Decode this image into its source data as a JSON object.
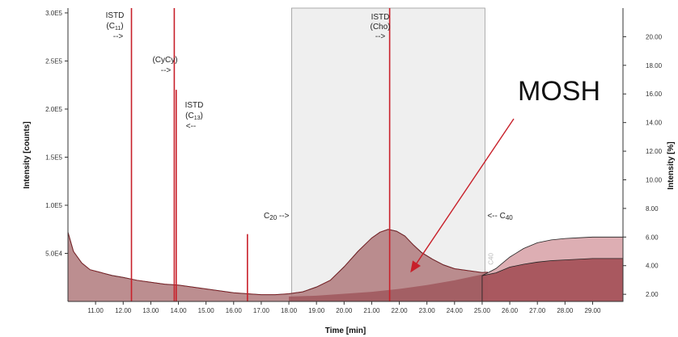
{
  "chart_data": {
    "type": "line",
    "xlabel": "Time [min]",
    "ylabel_left": "Intensity [counts]",
    "ylabel_right": "Intensity [%]",
    "xlim": [
      10.0,
      30.1
    ],
    "ylim_left": [
      0,
      305000
    ],
    "ylim_right": [
      1.5,
      22.0
    ],
    "x_ticks": [
      "11.00",
      "12.00",
      "13.00",
      "14.00",
      "15.00",
      "16.00",
      "17.00",
      "18.00",
      "19.00",
      "20.00",
      "21.00",
      "22.00",
      "23.00",
      "24.00",
      "25.00",
      "26.00",
      "27.00",
      "28.00",
      "29.00"
    ],
    "y_ticks_left": [
      {
        "label": "5.0E4",
        "value": 50000
      },
      {
        "label": "1.0E5",
        "value": 100000
      },
      {
        "label": "1.5E5",
        "value": 150000
      },
      {
        "label": "2.0E5",
        "value": 200000
      },
      {
        "label": "2.5E5",
        "value": 250000
      },
      {
        "label": "3.0E5",
        "value": 300000
      }
    ],
    "y_ticks_right": [
      "2.00",
      "4.00",
      "6.00",
      "8.00",
      "10.00",
      "12.00",
      "14.00",
      "16.00",
      "18.00",
      "20.00"
    ],
    "highlight_window": {
      "start": 18.1,
      "end": 25.1
    },
    "peaks": [
      {
        "x": 12.3,
        "y": 305000,
        "annotation": [
          "ISTD",
          "(C",
          "11",
          ")",
          "-->"
        ]
      },
      {
        "x": 13.85,
        "y": 305000,
        "annotation": [
          "(CyCy)",
          "-->"
        ]
      },
      {
        "x": 13.92,
        "y": 220000,
        "annotation": [
          "ISTD",
          "(C",
          "13",
          ")",
          "<--"
        ]
      },
      {
        "x": 21.65,
        "y": 305000,
        "annotation": [
          "ISTD",
          "(Cho)",
          "-->"
        ]
      },
      {
        "x": 16.5,
        "y": 70000
      }
    ],
    "markers": [
      {
        "label": "C",
        "sub": "20",
        "arrow": "-->",
        "x": 18.1
      },
      {
        "label": "C",
        "sub": "40",
        "arrow": "<--",
        "x": 25.1
      }
    ],
    "rotated_label": "C40",
    "series": [
      {
        "role": "chromatogram",
        "color": "#c8202a",
        "x": [
          10.0,
          10.2,
          10.5,
          10.8,
          11.2,
          11.6,
          12.0,
          12.5,
          13.0,
          13.5,
          14.0,
          14.5,
          15.0,
          15.5,
          16.0,
          16.5,
          17.0,
          17.5,
          18.0,
          18.5,
          19.0,
          19.5,
          20.0,
          20.5,
          21.0,
          21.3,
          21.6,
          21.9,
          22.2,
          22.5,
          22.8,
          23.2,
          23.6,
          24.0,
          24.5,
          25.0,
          25.2
        ],
        "y": [
          72000,
          52000,
          40000,
          33000,
          30000,
          27000,
          25000,
          22000,
          20000,
          18000,
          17000,
          15000,
          13000,
          11000,
          9000,
          8000,
          7000,
          7000,
          8000,
          10000,
          15000,
          22000,
          36000,
          52000,
          66000,
          72000,
          75000,
          73000,
          68000,
          59000,
          51000,
          44000,
          38000,
          34000,
          32000,
          30000,
          30500
        ]
      },
      {
        "role": "baseline",
        "color": "#b05560",
        "x": [
          18.0,
          19.0,
          20.0,
          21.0,
          22.0,
          23.0,
          24.0,
          25.0,
          25.2
        ],
        "y": [
          5000,
          6000,
          8000,
          10000,
          13000,
          17000,
          22000,
          28000,
          30000
        ]
      },
      {
        "role": "percent-upper",
        "color": "#b06070",
        "x": [
          25.0,
          25.5,
          26.0,
          26.5,
          27.0,
          27.5,
          28.0,
          28.5,
          29.0,
          29.5,
          30.1
        ],
        "y": [
          3.3,
          3.8,
          4.6,
          5.2,
          5.6,
          5.8,
          5.9,
          5.95,
          6.0,
          6.0,
          6.0
        ]
      },
      {
        "role": "percent-lower",
        "color": "#8a3b44",
        "x": [
          25.0,
          25.5,
          26.0,
          26.5,
          27.0,
          27.5,
          28.0,
          28.5,
          29.0,
          29.5,
          30.1
        ],
        "y": [
          3.3,
          3.5,
          3.9,
          4.1,
          4.25,
          4.35,
          4.4,
          4.45,
          4.5,
          4.5,
          4.5
        ]
      }
    ],
    "callout": {
      "label": "MOSH",
      "x": 22.4,
      "y": 30000
    }
  }
}
